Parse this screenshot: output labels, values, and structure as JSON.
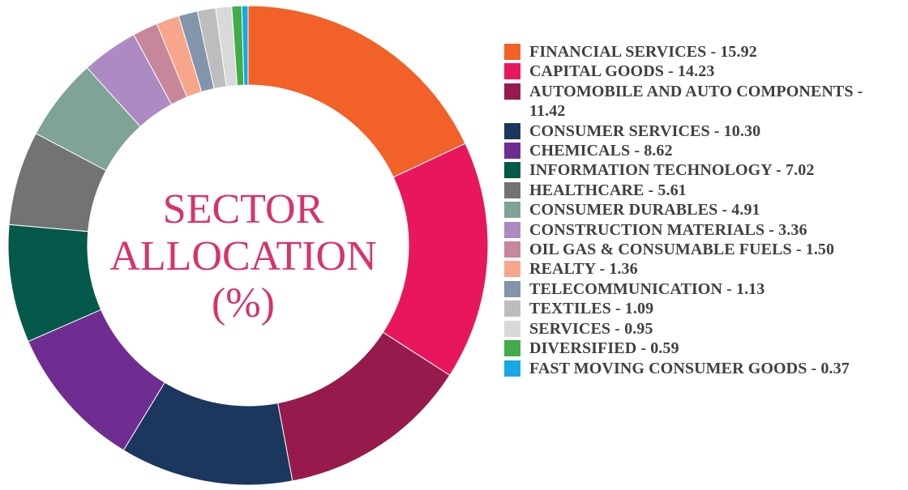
{
  "chart_data": {
    "type": "pie",
    "title_lines": [
      "SECTOR",
      "ALLOCATION",
      "(%)"
    ],
    "title_color": "#d6336c",
    "legend_position": "right",
    "slices": [
      {
        "label": "FINANCIAL SERVICES - 15.92",
        "value": 15.92,
        "color": "#f26128"
      },
      {
        "label": "CAPITAL GOODS - 14.23",
        "value": 14.23,
        "color": "#e8175d"
      },
      {
        "label": "AUTOMOBILE AND AUTO COMPONENTS - 11.42",
        "value": 11.42,
        "color": "#971a4d"
      },
      {
        "label": "CONSUMER SERVICES - 10.30",
        "value": 10.3,
        "color": "#1b375e"
      },
      {
        "label": "CHEMICALS - 8.62",
        "value": 8.62,
        "color": "#702d91"
      },
      {
        "label": "INFORMATION TECHNOLOGY - 7.02",
        "value": 7.02,
        "color": "#05594a"
      },
      {
        "label": "HEALTHCARE - 5.61",
        "value": 5.61,
        "color": "#737373"
      },
      {
        "label": "CONSUMER DURABLES - 4.91",
        "value": 4.91,
        "color": "#7fa396"
      },
      {
        "label": "CONSTRUCTION MATERIALS - 3.36",
        "value": 3.36,
        "color": "#ad8ac2"
      },
      {
        "label": "OIL GAS & CONSUMABLE FUELS - 1.50",
        "value": 1.5,
        "color": "#c6879a"
      },
      {
        "label": "REALTY - 1.36",
        "value": 1.36,
        "color": "#f7a58b"
      },
      {
        "label": "TELECOMMUNICATION - 1.13",
        "value": 1.13,
        "color": "#8395ab"
      },
      {
        "label": "TEXTILES - 1.09",
        "value": 1.09,
        "color": "#bdbdbd"
      },
      {
        "label": "SERVICES - 0.95",
        "value": 0.95,
        "color": "#d9d9d9"
      },
      {
        "label": "DIVERSIFIED - 0.59",
        "value": 0.59,
        "color": "#41ac4a"
      },
      {
        "label": "FAST MOVING CONSUMER GOODS - 0.37",
        "value": 0.37,
        "color": "#16a9e3"
      }
    ]
  }
}
